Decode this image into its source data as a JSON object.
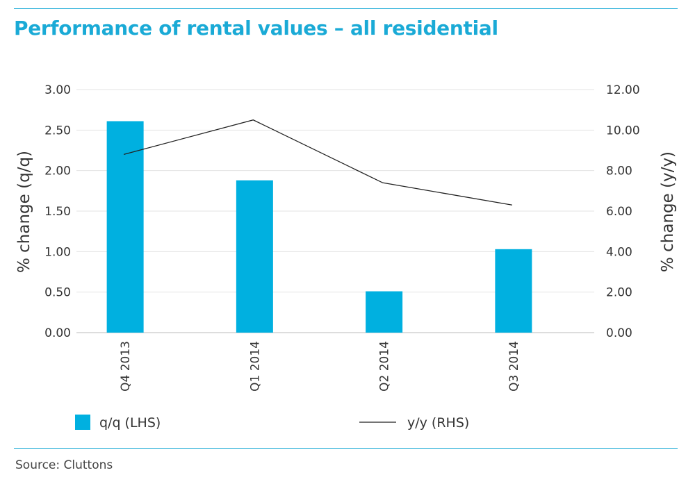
{
  "header": {
    "title": "Performance of rental values – all residential"
  },
  "footer": {
    "source": "Source: Cluttons"
  },
  "colors": {
    "accent": "#1aaad6",
    "bar": "#00b0e0",
    "line": "#222222",
    "grid": "#e3e3e3"
  },
  "chart_data": {
    "type": "bar",
    "title": "Performance of rental values – all residential",
    "categories": [
      "Q4 2013",
      "Q1 2014",
      "Q2 2014",
      "Q3 2014"
    ],
    "series": [
      {
        "name": "q/q (LHS)",
        "type": "bar",
        "axis": "left",
        "values": [
          2.61,
          1.88,
          0.51,
          1.03
        ]
      },
      {
        "name": "y/y (RHS)",
        "type": "line",
        "axis": "right",
        "values": [
          8.8,
          10.5,
          7.4,
          6.3
        ]
      }
    ],
    "ylabel_left": "% change (q/q)",
    "ylabel_right": "% change (y/y)",
    "ylim_left": [
      0,
      3
    ],
    "ylim_right": [
      0,
      12
    ],
    "yticks_left": [
      "0.00",
      "0.50",
      "1.00",
      "1.50",
      "2.00",
      "2.50",
      "3.00"
    ],
    "yticks_right": [
      "0.00",
      "2.00",
      "4.00",
      "6.00",
      "8.00",
      "10.00",
      "12.00"
    ],
    "grid": true,
    "legend_position": "bottom"
  }
}
